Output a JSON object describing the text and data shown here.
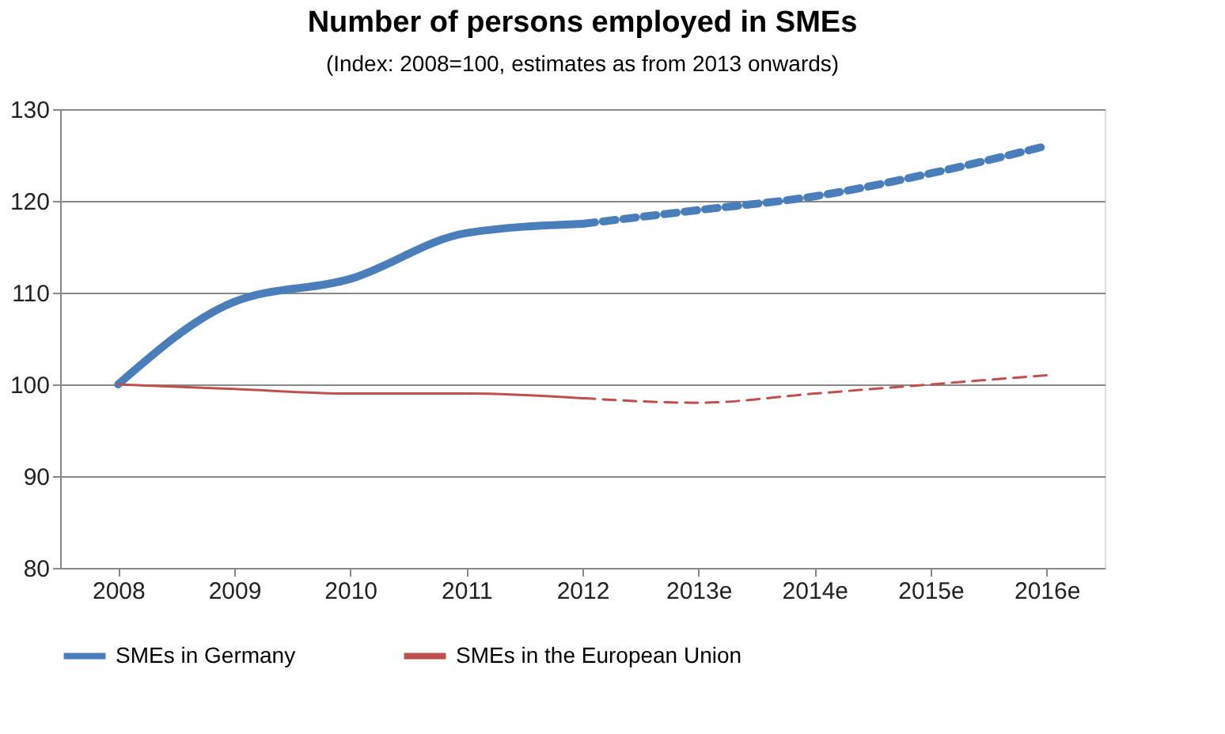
{
  "chart_data": {
    "type": "line",
    "title": "Number of persons employed in SMEs",
    "subtitle": "(Index: 2008=100, estimates as from 2013 onwards)",
    "categories": [
      "2008",
      "2009",
      "2010",
      "2011",
      "2012",
      "2013e",
      "2014e",
      "2015e",
      "2016e"
    ],
    "series": [
      {
        "name": "SMEs in Germany",
        "color": "#4a7ebb",
        "line_style": "solid",
        "values": [
          100,
          109,
          111.5,
          116.5,
          117.5,
          null,
          null,
          null,
          null
        ]
      },
      {
        "color": "#4a7ebb",
        "line_style": "dashed",
        "values": [
          null,
          null,
          null,
          null,
          117.5,
          119,
          120.5,
          123,
          126
        ]
      },
      {
        "name": "SMEs in the European Union",
        "color": "#c0504d",
        "line_style": "solid",
        "values": [
          100,
          99.5,
          99,
          99,
          98.5,
          null,
          null,
          null,
          null
        ]
      },
      {
        "color": "#c0504d",
        "line_style": "dashed",
        "values": [
          null,
          null,
          null,
          null,
          98.5,
          98,
          99,
          100,
          101
        ]
      }
    ],
    "ylim": [
      80,
      130
    ],
    "yticks": [
      80,
      90,
      100,
      110,
      120,
      130
    ],
    "grid": "y",
    "legend": "bottom",
    "marker": "none"
  }
}
